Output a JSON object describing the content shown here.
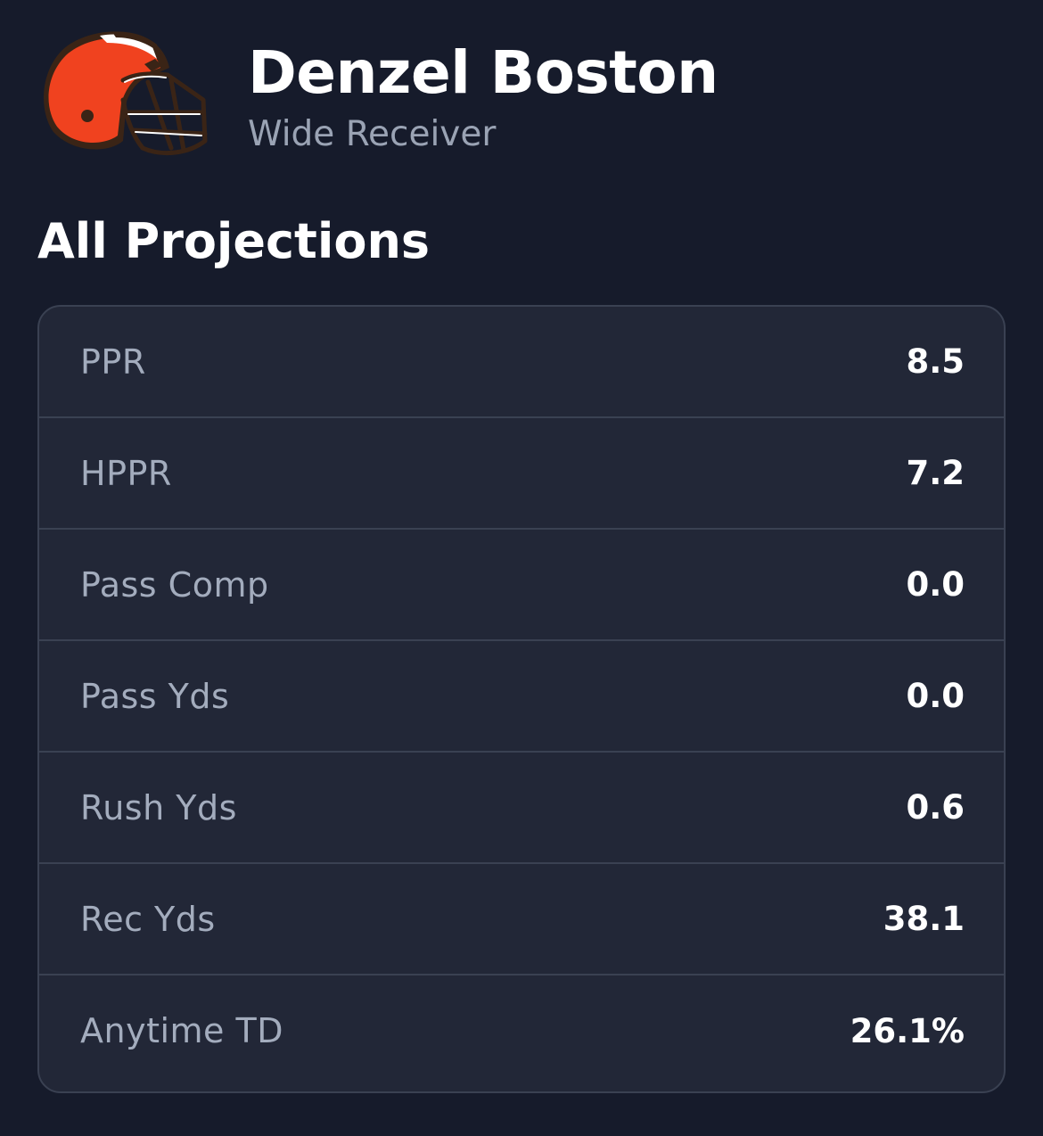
{
  "player": {
    "name": "Denzel Boston",
    "position": "Wide Receiver",
    "team_logo_icon": "football-helmet-icon"
  },
  "projections": {
    "title": "All Projections",
    "rows": [
      {
        "label": "PPR",
        "value": "8.5"
      },
      {
        "label": "HPPR",
        "value": "7.2"
      },
      {
        "label": "Pass Comp",
        "value": "0.0"
      },
      {
        "label": "Pass Yds",
        "value": "0.0"
      },
      {
        "label": "Rush Yds",
        "value": "0.6"
      },
      {
        "label": "Rec Yds",
        "value": "38.1"
      },
      {
        "label": "Anytime TD",
        "value": "26.1%"
      }
    ]
  },
  "colors": {
    "background": "#161b2b",
    "card": "#222737",
    "card_border": "#3a4152",
    "helmet_orange": "#f0421f",
    "helmet_brown": "#3a2416",
    "muted_text": "#a3acbd"
  }
}
